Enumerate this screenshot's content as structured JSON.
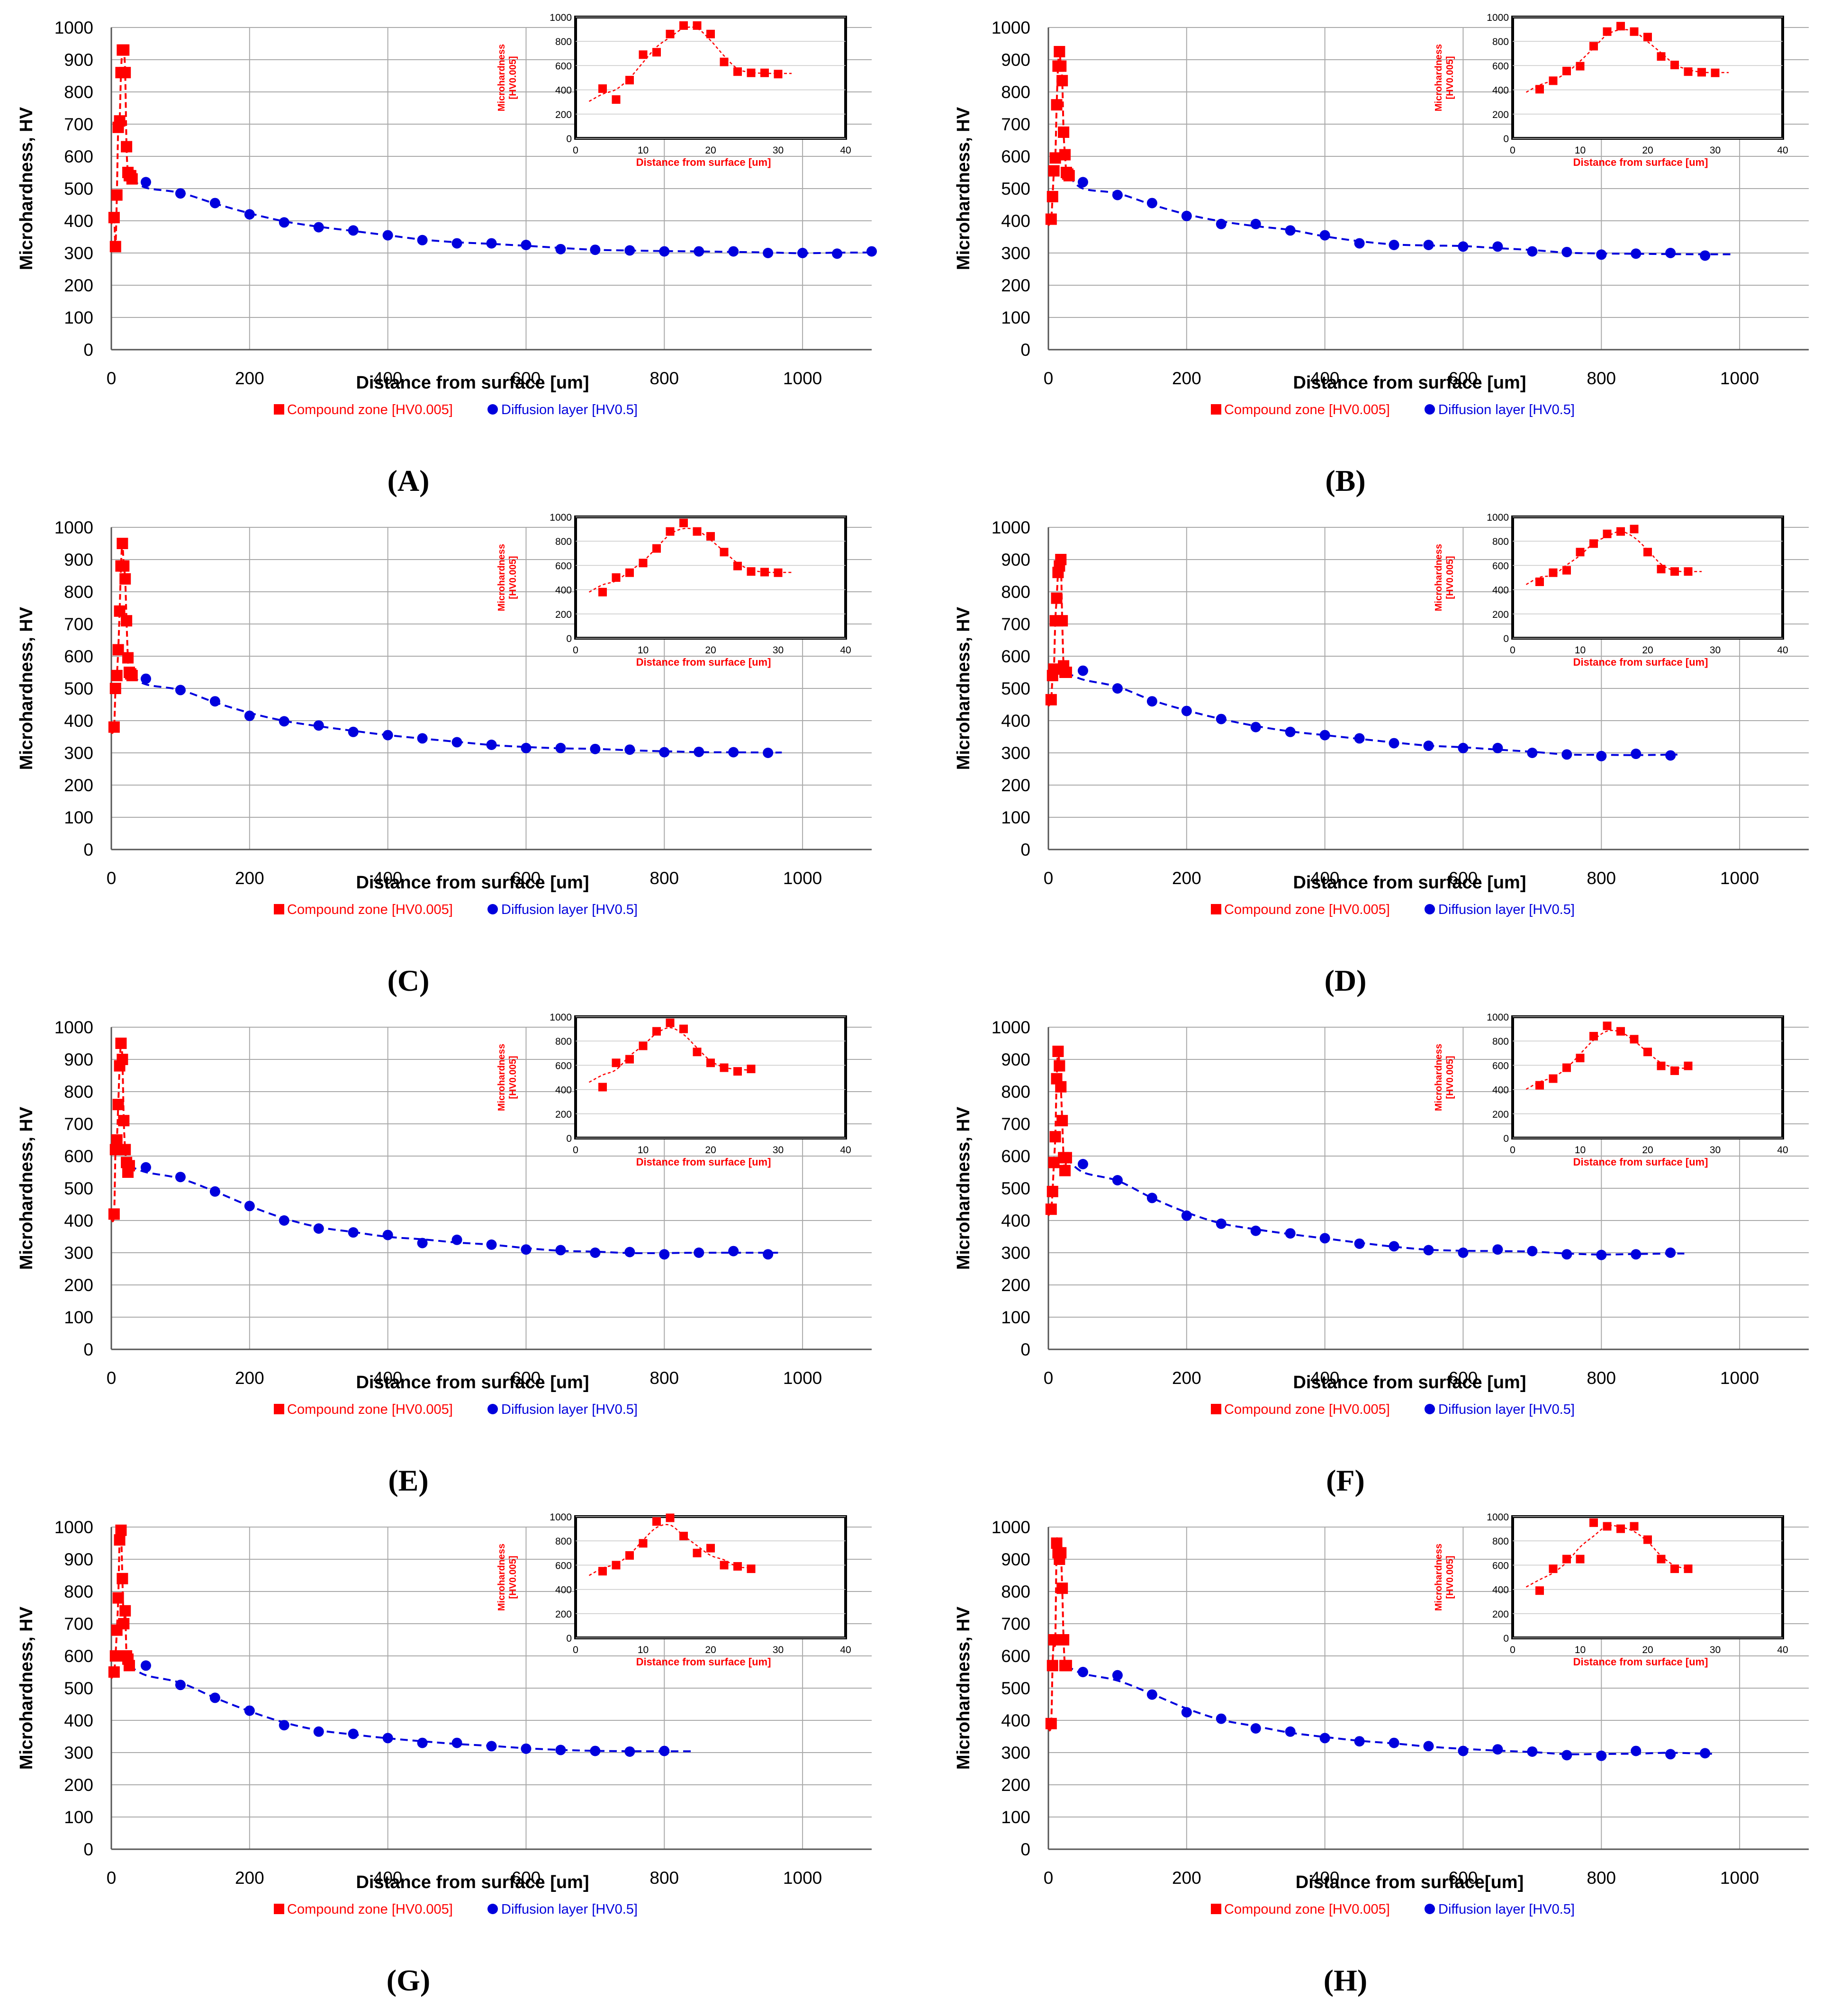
{
  "figure": {
    "ylabel": "Microhardness, HV",
    "inset_ylabel": [
      "Microhardness",
      "[HV0.005]"
    ],
    "series_names": [
      "Compound zone [HV0.005]",
      "Diffusion layer [HV0.5]"
    ],
    "colors": {
      "compound": "#ff0000",
      "diffusion": "#0000dd",
      "grid": "#aaaaaa",
      "axis": "#555555",
      "tick_text": "#000000"
    },
    "main_y_ticks": [
      "0",
      "100",
      "200",
      "300",
      "400",
      "500",
      "600",
      "700",
      "800",
      "900",
      "1000"
    ],
    "main_x_ticks": [
      "0",
      "200",
      "400",
      "600",
      "800",
      "1000"
    ],
    "inset_y_ticks": [
      "0",
      "200",
      "400",
      "600",
      "800",
      "1000"
    ],
    "inset_x_ticks": [
      "0",
      "10",
      "20",
      "30",
      "40"
    ]
  },
  "chart_data": [
    {
      "panel": "A",
      "label": "(A)",
      "type": "scatter",
      "xlabel": "Distance from surface [um]",
      "ylabel": "Microhardness, HV",
      "xlim": [
        0,
        1100
      ],
      "ylim": [
        0,
        1000
      ],
      "series": [
        {
          "name": "Compound zone [HV0.005]",
          "x": [
            4,
            6,
            8,
            10,
            12,
            14,
            16,
            18,
            20,
            22,
            24,
            26,
            28,
            30
          ],
          "y": [
            410,
            320,
            480,
            690,
            710,
            860,
            930,
            930,
            860,
            630,
            550,
            540,
            540,
            530
          ]
        },
        {
          "name": "Diffusion layer [HV0.5]",
          "x": [
            50,
            100,
            150,
            200,
            250,
            300,
            350,
            400,
            450,
            500,
            550,
            600,
            650,
            700,
            750,
            800,
            850,
            900,
            950,
            1000,
            1050,
            1100
          ],
          "y": [
            520,
            485,
            455,
            420,
            395,
            380,
            370,
            355,
            340,
            330,
            330,
            325,
            312,
            310,
            308,
            305,
            305,
            305,
            300,
            300,
            298,
            305
          ]
        }
      ],
      "trend_end": 1100,
      "inset": {
        "xlabel": "Distance from surface [um]",
        "ylabel": "Microhardness [HV0.005]",
        "xlim": [
          0,
          40
        ],
        "ylim": [
          0,
          1000
        ],
        "x": [
          4,
          6,
          8,
          10,
          12,
          14,
          16,
          18,
          20,
          22,
          24,
          26,
          28,
          30
        ],
        "y": [
          410,
          320,
          480,
          690,
          710,
          860,
          930,
          930,
          860,
          630,
          550,
          540,
          540,
          530
        ],
        "trend_end": 32
      }
    },
    {
      "panel": "B",
      "label": "(B)",
      "type": "scatter",
      "xlabel": "Distance from surface [um]",
      "ylabel": "Microhardness, HV",
      "xlim": [
        0,
        1100
      ],
      "ylim": [
        0,
        1000
      ],
      "series": [
        {
          "name": "Compound zone [HV0.005]",
          "x": [
            4,
            6,
            8,
            10,
            12,
            14,
            16,
            18,
            20,
            22,
            24,
            26,
            28,
            30
          ],
          "y": [
            405,
            475,
            555,
            595,
            760,
            880,
            925,
            880,
            835,
            675,
            605,
            550,
            545,
            540
          ]
        },
        {
          "name": "Diffusion layer [HV0.5]",
          "x": [
            50,
            100,
            150,
            200,
            250,
            300,
            350,
            400,
            450,
            500,
            550,
            600,
            650,
            700,
            750,
            800,
            850,
            900,
            950
          ],
          "y": [
            520,
            480,
            455,
            415,
            390,
            390,
            370,
            355,
            330,
            325,
            325,
            320,
            320,
            305,
            303,
            295,
            298,
            300,
            292
          ]
        }
      ],
      "trend_end": 990,
      "inset": {
        "xlabel": "Distance from surface [um]",
        "ylabel": "Microhardness [HV0.005]",
        "xlim": [
          0,
          40
        ],
        "ylim": [
          0,
          1000
        ],
        "x": [
          4,
          6,
          8,
          10,
          12,
          14,
          16,
          18,
          20,
          22,
          24,
          26,
          28,
          30
        ],
        "y": [
          405,
          475,
          555,
          595,
          760,
          880,
          925,
          880,
          835,
          675,
          605,
          550,
          545,
          540
        ],
        "trend_end": 32
      }
    },
    {
      "panel": "C",
      "label": "(C)",
      "type": "scatter",
      "xlabel": "Distance from surface [um]",
      "ylabel": "Microhardness, HV",
      "xlim": [
        0,
        1100
      ],
      "ylim": [
        0,
        1000
      ],
      "series": [
        {
          "name": "Compound zone [HV0.005]",
          "x": [
            4,
            6,
            8,
            10,
            12,
            14,
            16,
            18,
            20,
            22,
            24,
            26,
            28,
            30
          ],
          "y": [
            380,
            500,
            540,
            620,
            740,
            880,
            950,
            880,
            840,
            710,
            595,
            550,
            545,
            540
          ]
        },
        {
          "name": "Diffusion layer [HV0.5]",
          "x": [
            50,
            100,
            150,
            200,
            250,
            300,
            350,
            400,
            450,
            500,
            550,
            600,
            650,
            700,
            750,
            800,
            850,
            900,
            950
          ],
          "y": [
            530,
            495,
            460,
            415,
            398,
            385,
            365,
            355,
            345,
            333,
            325,
            315,
            315,
            312,
            310,
            302,
            303,
            302,
            300
          ]
        }
      ],
      "trend_end": 970,
      "inset": {
        "xlabel": "Distance from surface [um]",
        "ylabel": "Microhardness [HV0.005]",
        "xlim": [
          0,
          40
        ],
        "ylim": [
          0,
          1000
        ],
        "x": [
          4,
          6,
          8,
          10,
          12,
          14,
          16,
          18,
          20,
          22,
          24,
          26,
          28,
          30
        ],
        "y": [
          380,
          500,
          540,
          620,
          740,
          880,
          950,
          880,
          840,
          710,
          595,
          550,
          545,
          540
        ],
        "trend_end": 32
      }
    },
    {
      "panel": "D",
      "label": "(D)",
      "type": "scatter",
      "xlabel": "Distance from surface [um]",
      "ylabel": "Microhardness, HV",
      "xlim": [
        0,
        1100
      ],
      "ylim": [
        0,
        1000
      ],
      "series": [
        {
          "name": "Compound zone [HV0.005]",
          "x": [
            4,
            6,
            8,
            10,
            12,
            14,
            16,
            18,
            20,
            22,
            24,
            26
          ],
          "y": [
            465,
            540,
            560,
            710,
            780,
            860,
            880,
            900,
            710,
            570,
            550,
            550
          ]
        },
        {
          "name": "Diffusion layer [HV0.5]",
          "x": [
            50,
            100,
            150,
            200,
            250,
            300,
            350,
            400,
            450,
            500,
            550,
            600,
            650,
            700,
            750,
            800,
            850,
            900
          ],
          "y": [
            555,
            500,
            460,
            430,
            405,
            380,
            365,
            355,
            345,
            330,
            322,
            315,
            315,
            300,
            295,
            290,
            297,
            292
          ]
        }
      ],
      "trend_end": 910,
      "inset": {
        "xlabel": "Distance from surface [um]",
        "ylabel": "Microhardness [HV0.005]",
        "xlim": [
          0,
          40
        ],
        "ylim": [
          0,
          1000
        ],
        "x": [
          4,
          6,
          8,
          10,
          12,
          14,
          16,
          18,
          20,
          22,
          24,
          26
        ],
        "y": [
          465,
          540,
          560,
          710,
          780,
          860,
          880,
          900,
          710,
          570,
          550,
          550
        ],
        "trend_end": 28
      }
    },
    {
      "panel": "E",
      "label": "(E)",
      "type": "scatter",
      "xlabel": "Distance from surface [um]",
      "ylabel": "Microhardness, HV",
      "xlim": [
        0,
        1100
      ],
      "ylim": [
        0,
        1000
      ],
      "series": [
        {
          "name": "Compound zone [HV0.005]",
          "x": [
            4,
            6,
            8,
            10,
            12,
            14,
            16,
            18,
            20,
            22,
            24,
            26
          ],
          "y": [
            420,
            620,
            650,
            760,
            880,
            950,
            900,
            710,
            620,
            580,
            550,
            570
          ]
        },
        {
          "name": "Diffusion layer [HV0.5]",
          "x": [
            50,
            100,
            150,
            200,
            250,
            300,
            350,
            400,
            450,
            500,
            550,
            600,
            650,
            700,
            750,
            800,
            850,
            900,
            950
          ],
          "y": [
            565,
            535,
            490,
            445,
            400,
            375,
            363,
            355,
            330,
            340,
            325,
            310,
            308,
            300,
            302,
            295,
            300,
            305,
            295
          ]
        }
      ],
      "trend_end": 970,
      "inset": {
        "xlabel": "Distance from surface [um]",
        "ylabel": "Microhardness [HV0.005]",
        "xlim": [
          0,
          40
        ],
        "ylim": [
          0,
          1000
        ],
        "x": [
          4,
          6,
          8,
          10,
          12,
          14,
          16,
          18,
          20,
          22,
          24,
          26
        ],
        "y": [
          420,
          620,
          650,
          760,
          880,
          950,
          900,
          710,
          620,
          580,
          550,
          570
        ],
        "trend_end": 26
      }
    },
    {
      "panel": "F",
      "label": "(F)",
      "type": "scatter",
      "xlabel": "Distance from surface [um]",
      "ylabel": "Microhardness, HV",
      "xlim": [
        0,
        1100
      ],
      "ylim": [
        0,
        1000
      ],
      "series": [
        {
          "name": "Compound zone [HV0.005]",
          "x": [
            4,
            6,
            8,
            10,
            12,
            14,
            16,
            18,
            20,
            22,
            24,
            26
          ],
          "y": [
            435,
            490,
            580,
            660,
            840,
            925,
            880,
            815,
            710,
            595,
            555,
            595
          ]
        },
        {
          "name": "Diffusion layer [HV0.5]",
          "x": [
            50,
            100,
            150,
            200,
            250,
            300,
            350,
            400,
            450,
            500,
            550,
            600,
            650,
            700,
            750,
            800,
            850,
            900
          ],
          "y": [
            575,
            525,
            470,
            415,
            390,
            368,
            360,
            345,
            328,
            320,
            308,
            300,
            310,
            305,
            295,
            293,
            295,
            300
          ]
        }
      ],
      "trend_end": 920,
      "inset": {
        "xlabel": "Distance from surface [um]",
        "ylabel": "Microhardness [HV0.005]",
        "xlim": [
          0,
          40
        ],
        "ylim": [
          0,
          1000
        ],
        "x": [
          4,
          6,
          8,
          10,
          12,
          14,
          16,
          18,
          20,
          22,
          24,
          26
        ],
        "y": [
          435,
          490,
          580,
          660,
          840,
          925,
          880,
          815,
          710,
          595,
          555,
          595
        ],
        "trend_end": 26
      }
    },
    {
      "panel": "G",
      "label": "(G)",
      "type": "scatter",
      "xlabel": "Distance from surface [um]",
      "ylabel": "Microhardness, HV",
      "xlim": [
        0,
        1100
      ],
      "ylim": [
        0,
        1000
      ],
      "series": [
        {
          "name": "Compound zone [HV0.005]",
          "x": [
            4,
            6,
            8,
            10,
            12,
            14,
            16,
            18,
            20,
            22,
            24,
            26
          ],
          "y": [
            550,
            600,
            680,
            780,
            960,
            990,
            840,
            700,
            740,
            600,
            590,
            570
          ]
        },
        {
          "name": "Diffusion layer [HV0.5]",
          "x": [
            50,
            100,
            150,
            200,
            250,
            300,
            350,
            400,
            450,
            500,
            550,
            600,
            650,
            700,
            750,
            800
          ],
          "y": [
            570,
            510,
            470,
            430,
            385,
            365,
            358,
            345,
            330,
            330,
            320,
            312,
            308,
            305,
            303,
            305
          ]
        }
      ],
      "trend_end": 840,
      "inset": {
        "xlabel": "Distance from surface [um]",
        "ylabel": "Microhardness [HV0.005]",
        "xlim": [
          0,
          40
        ],
        "ylim": [
          0,
          1000
        ],
        "x": [
          4,
          6,
          8,
          10,
          12,
          14,
          16,
          18,
          20,
          22,
          24,
          26
        ],
        "y": [
          550,
          600,
          680,
          780,
          960,
          990,
          840,
          700,
          740,
          600,
          590,
          570
        ],
        "trend_end": 26
      }
    },
    {
      "panel": "H",
      "label": "(H)",
      "type": "scatter",
      "xlabel": "Distance from surface[um]",
      "ylabel": "Microhardness, HV",
      "xlim": [
        0,
        1100
      ],
      "ylim": [
        0,
        1000
      ],
      "series": [
        {
          "name": "Compound zone [HV0.005]",
          "x": [
            4,
            6,
            8,
            10,
            12,
            14,
            16,
            18,
            20,
            22,
            24,
            26
          ],
          "y": [
            390,
            570,
            650,
            650,
            950,
            920,
            900,
            920,
            810,
            650,
            570,
            570
          ]
        },
        {
          "name": "Diffusion layer [HV0.5]",
          "x": [
            50,
            100,
            150,
            200,
            250,
            300,
            350,
            400,
            450,
            500,
            550,
            600,
            650,
            700,
            750,
            800,
            850,
            900,
            950
          ],
          "y": [
            550,
            540,
            480,
            425,
            405,
            375,
            365,
            345,
            335,
            330,
            320,
            305,
            310,
            303,
            292,
            290,
            305,
            295,
            298
          ]
        }
      ],
      "trend_end": 960,
      "inset": {
        "xlabel": "Distance from surface [um]",
        "ylabel": "Microhardness [HV0.005]",
        "xlim": [
          0,
          40
        ],
        "ylim": [
          0,
          1000
        ],
        "x": [
          4,
          6,
          8,
          10,
          12,
          14,
          16,
          18,
          20,
          22,
          24,
          26
        ],
        "y": [
          390,
          570,
          650,
          650,
          950,
          920,
          900,
          920,
          810,
          650,
          570,
          570
        ],
        "trend_end": 26
      }
    }
  ]
}
